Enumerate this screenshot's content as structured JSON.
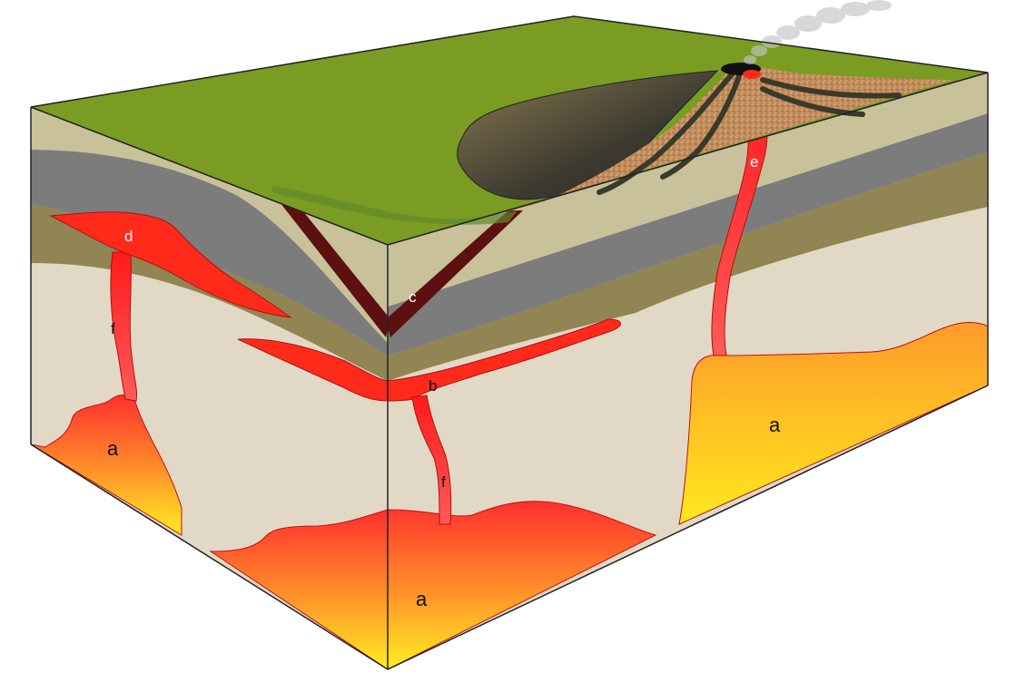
{
  "diagram": {
    "labels": {
      "a_left": "a",
      "a_front": "a",
      "a_right": "a",
      "b": "b",
      "c": "c",
      "d": "d",
      "e": "e",
      "f_left": "f",
      "f_center": "f"
    },
    "colors": {
      "grass": "#7a9c22",
      "sand_layer": "#c8c19a",
      "gray_layer": "#7c7c7c",
      "olive_layer": "#908553",
      "bedrock": "#e2d8c6",
      "magma_red": "#ff2a1a",
      "magma_orange": "#ff9a2a",
      "magma_yellow": "#ffee22",
      "fault": "#5c1010",
      "volcano_soil": "#c08a5a",
      "lake": "#4a4636",
      "outline": "#222222"
    }
  }
}
